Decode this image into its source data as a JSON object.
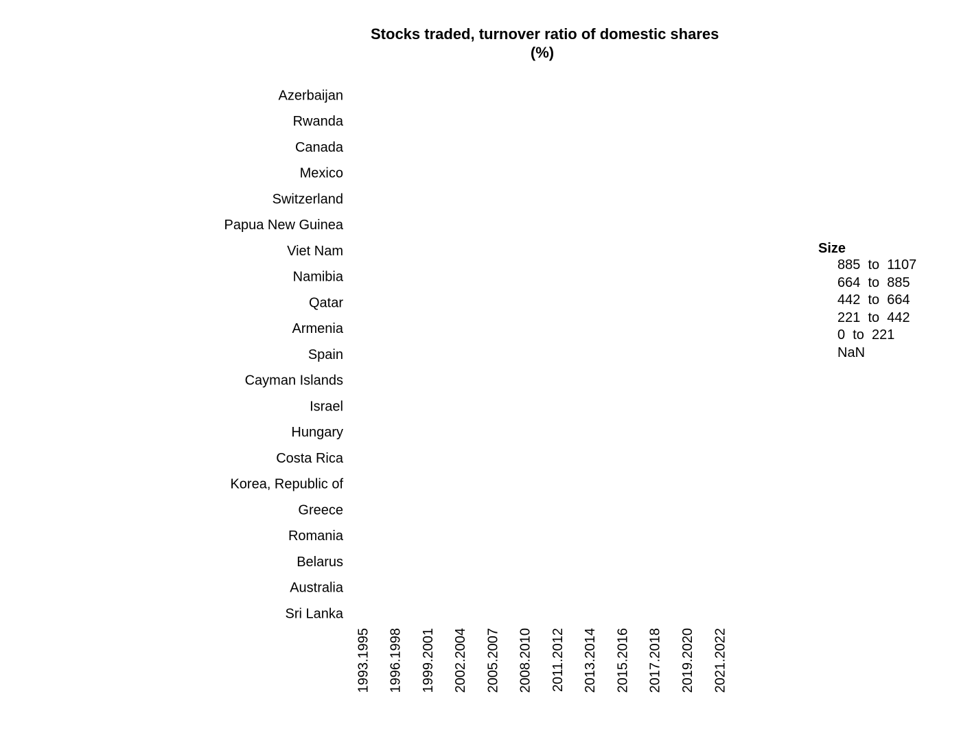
{
  "chart_data": {
    "type": "scatter",
    "title": "Stocks traded, turnover ratio of domestic shares",
    "subtitle": "(%)",
    "categories_y": [
      "Azerbaijan",
      "Rwanda",
      "Canada",
      "Mexico",
      "Switzerland",
      "Papua New Guinea",
      "Viet Nam",
      "Namibia",
      "Qatar",
      "Armenia",
      "Spain",
      "Cayman Islands",
      "Israel",
      "Hungary",
      "Costa Rica",
      "Korea, Republic of",
      "Greece",
      "Romania",
      "Belarus",
      "Australia",
      "Sri Lanka"
    ],
    "categories_x": [
      "1993.1995",
      "1996.1998",
      "1999.2001",
      "2002.2004",
      "2005.2007",
      "2008.2010",
      "2011.2012",
      "2013.2014",
      "2015.2016",
      "2017.2018",
      "2019.2020",
      "2021.2022"
    ],
    "points": [],
    "legend": {
      "title": "Size",
      "position": "right",
      "items": [
        "885  to  1107",
        "664  to  885",
        "442  to  664",
        "221  to  442",
        "0  to  221",
        "NaN"
      ]
    },
    "grid": false
  }
}
